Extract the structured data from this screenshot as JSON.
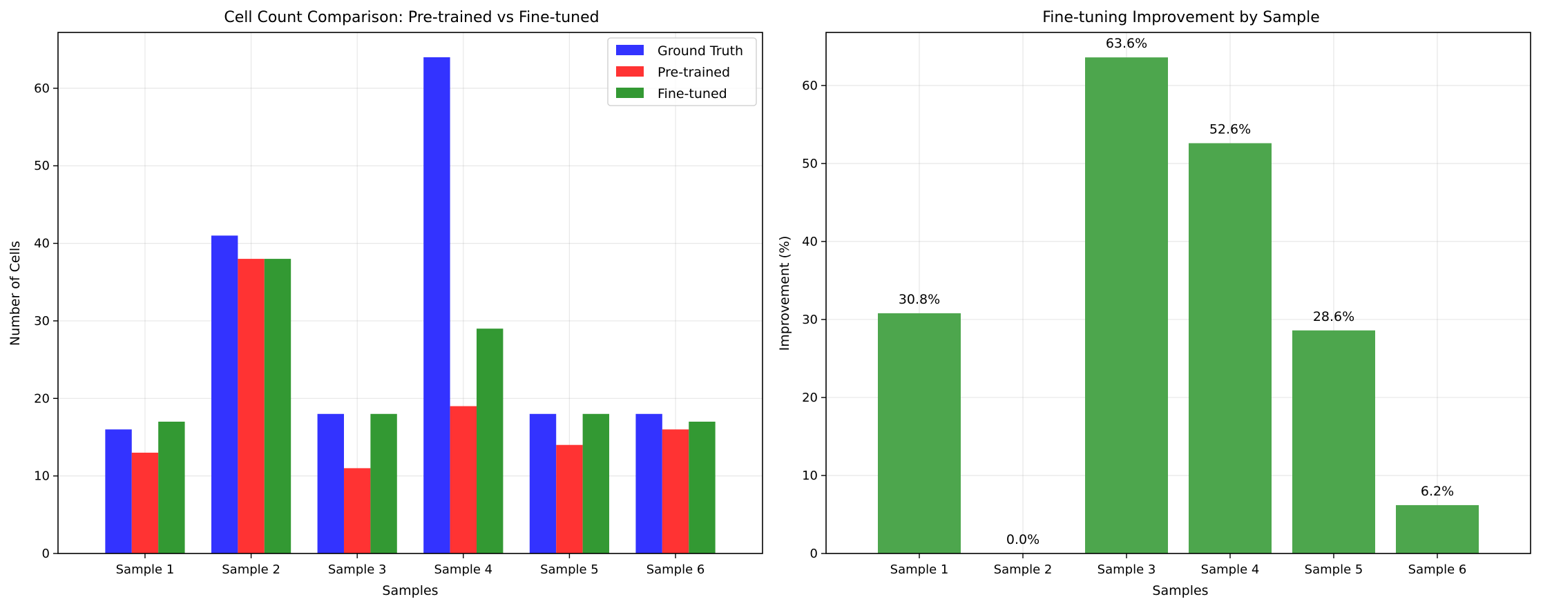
{
  "chart_data": [
    {
      "type": "bar",
      "title": "Cell Count Comparison: Pre-trained vs Fine-tuned",
      "xlabel": "Samples",
      "ylabel": "Number of Cells",
      "categories": [
        "Sample 1",
        "Sample 2",
        "Sample 3",
        "Sample 4",
        "Sample 5",
        "Sample 6"
      ],
      "series": [
        {
          "name": "Ground Truth",
          "color": "#3333ff",
          "values": [
            16,
            41,
            18,
            64,
            18,
            18
          ]
        },
        {
          "name": "Pre-trained",
          "color": "#ff3333",
          "values": [
            13,
            38,
            11,
            19,
            14,
            16
          ]
        },
        {
          "name": "Fine-tuned",
          "color": "#339933",
          "values": [
            17,
            38,
            18,
            29,
            18,
            17
          ]
        }
      ],
      "ylim": [
        0,
        67.2
      ],
      "yticks": [
        0,
        10,
        20,
        30,
        40,
        50,
        60
      ],
      "grid": true,
      "legend": "top-right"
    },
    {
      "type": "bar",
      "title": "Fine-tuning Improvement by Sample",
      "xlabel": "Samples",
      "ylabel": "Improvement (%)",
      "categories": [
        "Sample 1",
        "Sample 2",
        "Sample 3",
        "Sample 4",
        "Sample 5",
        "Sample 6"
      ],
      "series": [
        {
          "color": "#4da64d",
          "values": [
            30.8,
            0.0,
            63.6,
            52.6,
            28.6,
            6.2
          ]
        }
      ],
      "data_labels": [
        "30.8%",
        "0.0%",
        "63.6%",
        "52.6%",
        "28.6%",
        "6.2%"
      ],
      "ylim": [
        0,
        66.8
      ],
      "yticks": [
        0,
        10,
        20,
        30,
        40,
        50,
        60
      ],
      "grid": true
    }
  ]
}
